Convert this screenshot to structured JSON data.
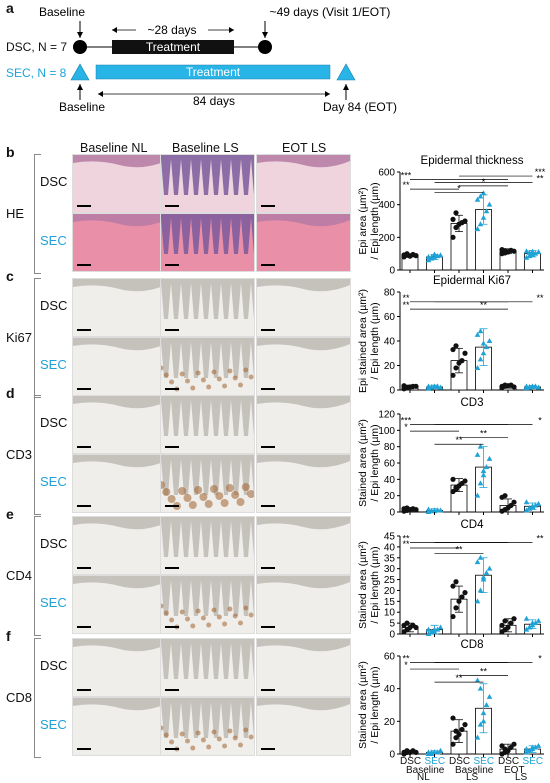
{
  "panel_a": {
    "letter": "a",
    "dsc_label": "DSC, N = 7",
    "sec_label": "SEC, N = 8",
    "dsc_baseline": "Baseline",
    "dsc_visit": "~49 days (Visit 1/EOT)",
    "dsc_days": "~28 days",
    "dsc_treatment": "Treatment",
    "sec_treatment": "Treatment",
    "sec_baseline": "Baseline",
    "sec_days": "84 days",
    "sec_day84": "Day 84 (EOT)"
  },
  "column_headers": [
    "Baseline NL",
    "Baseline LS",
    "EOT LS"
  ],
  "rows": [
    {
      "letter": "b",
      "stain": "HE"
    },
    {
      "letter": "c",
      "stain": "Ki67"
    },
    {
      "letter": "d",
      "stain": "CD3"
    },
    {
      "letter": "e",
      "stain": "CD4"
    },
    {
      "letter": "f",
      "stain": "CD8"
    }
  ],
  "group_labels": {
    "dsc": "DSC",
    "sec": "SEC"
  },
  "colors": {
    "dsc": "#111111",
    "sec": "#1fa3d6",
    "sec_text": "#1fa3d6"
  },
  "x_axis": {
    "groups": [
      "DSC",
      "SEC",
      "DSC",
      "SEC",
      "DSC",
      "SEC"
    ],
    "sub": [
      "Baseline",
      "Baseline",
      "EOT"
    ],
    "sub2": [
      "NL",
      "LS",
      "LS"
    ]
  },
  "chart_data": [
    {
      "type": "bar",
      "title": "Epidermal thickness",
      "ylabel": [
        "Epi area (µm²)",
        "/ Epi length (µm)"
      ],
      "ylim": [
        0,
        600
      ],
      "ticks": [
        "0",
        "200",
        "400",
        "600"
      ],
      "categories": [
        "DSC Baseline NL",
        "SEC Baseline NL",
        "DSC Baseline LS",
        "SEC Baseline LS",
        "DSC EOT LS",
        "SEC EOT LS"
      ],
      "means": [
        90,
        80,
        285,
        370,
        115,
        100
      ],
      "sd": [
        10,
        15,
        50,
        90,
        15,
        20
      ],
      "points": [
        [
          80,
          90,
          85,
          95,
          88,
          92,
          100
        ],
        [
          60,
          70,
          75,
          85,
          90,
          80,
          78,
          95
        ],
        [
          200,
          260,
          280,
          290,
          300,
          310,
          350
        ],
        [
          250,
          280,
          320,
          360,
          400,
          430,
          450,
          470
        ],
        [
          100,
          105,
          110,
          120,
          115,
          125,
          118
        ],
        [
          75,
          85,
          95,
          100,
          110,
          115,
          105,
          112
        ]
      ],
      "sig": [
        {
          "from": 0,
          "to": 4,
          "label": "***",
          "y": 555
        },
        {
          "from": 2,
          "to": 5,
          "label": "***",
          "y": 575
        },
        {
          "from": 1,
          "to": 5,
          "label": "**",
          "y": 535
        },
        {
          "from": 0,
          "to": 2,
          "label": "**",
          "y": 495
        },
        {
          "from": 1,
          "to": 3,
          "label": "*",
          "y": 475
        },
        {
          "from": 2,
          "to": 4,
          "label": "*",
          "y": 515
        }
      ]
    },
    {
      "type": "bar",
      "title": "Epidermal Ki67",
      "ylabel": [
        "Epi stained area (µm²)",
        "/ Epi length (µm)"
      ],
      "ylim": [
        0,
        80
      ],
      "ticks": [
        "0",
        "20",
        "40",
        "60",
        "80"
      ],
      "categories": [
        "DSC Baseline NL",
        "SEC Baseline NL",
        "DSC Baseline LS",
        "SEC Baseline LS",
        "DSC EOT LS",
        "SEC EOT LS"
      ],
      "means": [
        2.5,
        2.5,
        24,
        35,
        3,
        2.5
      ],
      "sd": [
        1.5,
        1.5,
        10,
        15,
        1.5,
        1.2
      ],
      "points": [
        [
          1,
          2,
          2.5,
          3,
          3,
          3.5,
          2
        ],
        [
          1,
          2,
          2.5,
          3,
          2,
          3,
          2.5,
          3
        ],
        [
          12,
          18,
          22,
          24,
          30,
          33,
          36
        ],
        [
          18,
          25,
          30,
          35,
          40,
          45,
          48,
          38
        ],
        [
          2,
          3,
          3.5,
          4,
          2.5,
          3,
          4
        ],
        [
          1.5,
          2,
          2.5,
          3,
          2,
          3,
          2.5,
          3
        ]
      ],
      "sig": [
        {
          "from": 0,
          "to": 4,
          "label": "**",
          "y": 72
        },
        {
          "from": 0,
          "to": 2,
          "label": "**",
          "y": 66
        },
        {
          "from": 1,
          "to": 5,
          "label": "**",
          "y": 72
        },
        {
          "from": 2,
          "to": 4,
          "label": "**",
          "y": 66
        }
      ]
    },
    {
      "type": "bar",
      "title": "CD3",
      "ylabel": [
        "Stained area (µm²)",
        "/ Epi length (µm)"
      ],
      "ylim": [
        0,
        120
      ],
      "ticks": [
        "0",
        "20",
        "40",
        "60",
        "80",
        "100",
        "120"
      ],
      "categories": [
        "DSC Baseline NL",
        "SEC Baseline NL",
        "DSC Baseline LS",
        "SEC Baseline LS",
        "DSC EOT LS",
        "SEC EOT LS"
      ],
      "means": [
        3,
        2,
        33,
        55,
        8,
        7
      ],
      "sd": [
        2,
        2,
        8,
        25,
        8,
        4
      ],
      "points": [
        [
          1,
          2,
          3,
          4,
          3,
          4,
          5
        ],
        [
          0,
          1,
          1,
          2,
          2,
          3,
          1,
          2
        ],
        [
          25,
          28,
          32,
          35,
          38,
          40,
          30
        ],
        [
          20,
          35,
          45,
          55,
          65,
          70,
          80,
          50
        ],
        [
          1,
          3,
          5,
          8,
          12,
          18,
          20
        ],
        [
          2,
          4,
          6,
          8,
          10,
          12,
          5,
          7
        ]
      ],
      "sig": [
        {
          "from": 0,
          "to": 4,
          "label": "***",
          "y": 107
        },
        {
          "from": 1,
          "to": 5,
          "label": "*",
          "y": 107
        },
        {
          "from": 0,
          "to": 2,
          "label": "*",
          "y": 99
        },
        {
          "from": 2,
          "to": 4,
          "label": "**",
          "y": 91
        },
        {
          "from": 1,
          "to": 3,
          "label": "**",
          "y": 83
        }
      ]
    },
    {
      "type": "bar",
      "title": "CD4",
      "ylabel": [
        "Stained area (µm²)",
        "/ Epi length (µm)"
      ],
      "ylim": [
        0,
        45
      ],
      "ticks": [
        "0",
        "5",
        "10",
        "15",
        "20",
        "25",
        "30",
        "35",
        "40",
        "45"
      ],
      "categories": [
        "DSC Baseline NL",
        "SEC Baseline NL",
        "DSC Baseline LS",
        "SEC Baseline LS",
        "DSC EOT LS",
        "SEC EOT LS"
      ],
      "means": [
        3,
        2,
        16,
        27,
        4,
        4.5
      ],
      "sd": [
        2,
        2,
        6,
        8,
        3,
        2
      ],
      "points": [
        [
          1,
          2,
          3,
          4,
          3,
          4,
          5
        ],
        [
          0,
          1,
          1,
          2,
          3,
          2,
          1,
          2
        ],
        [
          8,
          12,
          15,
          17,
          19,
          22,
          24
        ],
        [
          15,
          20,
          25,
          28,
          30,
          33,
          35,
          26
        ],
        [
          1,
          2,
          3,
          5,
          7,
          4,
          6
        ],
        [
          2,
          3,
          4,
          5,
          6,
          7,
          3,
          5
        ]
      ],
      "sig": [
        {
          "from": 0,
          "to": 4,
          "label": "**",
          "y": 42
        },
        {
          "from": 1,
          "to": 5,
          "label": "**",
          "y": 42
        },
        {
          "from": 0,
          "to": 2,
          "label": "**",
          "y": 39.5
        },
        {
          "from": 1,
          "to": 3,
          "label": "**",
          "y": 37
        }
      ]
    },
    {
      "type": "bar",
      "title": "CD8",
      "ylabel": [
        "Stained area (µm²)",
        "/ Epi length (µm)"
      ],
      "ylim": [
        0,
        60
      ],
      "ticks": [
        "0",
        "20",
        "40",
        "60"
      ],
      "categories": [
        "DSC Baseline NL",
        "SEC Baseline NL",
        "DSC Baseline LS",
        "SEC Baseline LS",
        "DSC EOT LS",
        "SEC EOT LS"
      ],
      "means": [
        1,
        1,
        14,
        28,
        3,
        3
      ],
      "sd": [
        1,
        1,
        7,
        15,
        3,
        2
      ],
      "points": [
        [
          0,
          1,
          1,
          2,
          1,
          1,
          2
        ],
        [
          0,
          0,
          1,
          1,
          2,
          1,
          1,
          1
        ],
        [
          6,
          10,
          12,
          15,
          18,
          22,
          14
        ],
        [
          10,
          18,
          25,
          30,
          35,
          45,
          40,
          20
        ],
        [
          0,
          1,
          2,
          4,
          6,
          5,
          3
        ],
        [
          1,
          2,
          3,
          4,
          5,
          3,
          2,
          4
        ]
      ],
      "sig": [
        {
          "from": 0,
          "to": 4,
          "label": "**",
          "y": 56
        },
        {
          "from": 1,
          "to": 5,
          "label": "*",
          "y": 56
        },
        {
          "from": 0,
          "to": 2,
          "label": "*",
          "y": 52
        },
        {
          "from": 2,
          "to": 4,
          "label": "**",
          "y": 48
        },
        {
          "from": 1,
          "to": 3,
          "label": "**",
          "y": 44
        }
      ]
    }
  ]
}
